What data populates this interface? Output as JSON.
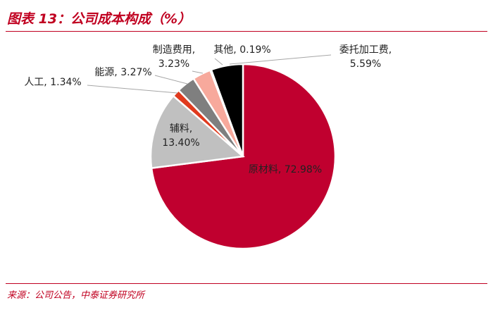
{
  "title": "图表 13：公司成本构成（%）",
  "source": "来源：公司公告，中泰证券研究所",
  "chart_data": {
    "type": "pie",
    "title": "图表 13：公司成本构成（%）",
    "slices": [
      {
        "name": "原材料",
        "value": 72.98,
        "label_lines": [
          "原材料, 72.98%"
        ],
        "color": "#c0002f"
      },
      {
        "name": "辅料",
        "value": 13.4,
        "label_lines": [
          "辅料,",
          "13.40%"
        ],
        "color": "#c0c0c0"
      },
      {
        "name": "人工",
        "value": 1.34,
        "label_lines": [
          "人工, 1.34%"
        ],
        "color": "#e03a1e"
      },
      {
        "name": "能源",
        "value": 3.27,
        "label_lines": [
          "能源, 3.27%"
        ],
        "color": "#7f7f7f"
      },
      {
        "name": "制造费用",
        "value": 3.23,
        "label_lines": [
          "制造费用,",
          "3.23%"
        ],
        "color": "#f7a99c"
      },
      {
        "name": "其他",
        "value": 0.19,
        "label_lines": [
          "其他, 0.19%"
        ],
        "color": "#f2f2f2"
      },
      {
        "name": "委托加工费",
        "value": 5.59,
        "label_lines": [
          "委托加工费,",
          "5.59%"
        ],
        "color": "#000000"
      }
    ]
  }
}
